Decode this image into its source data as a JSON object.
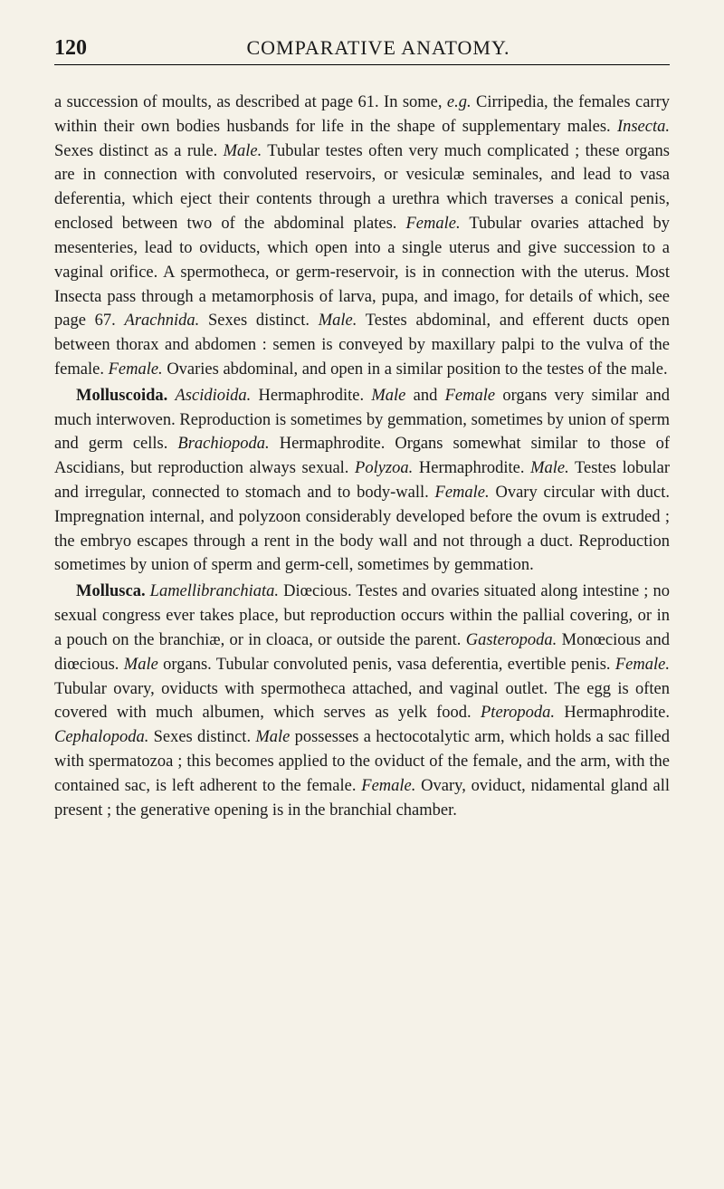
{
  "header": {
    "page_number": "120",
    "title": "COMPARATIVE ANATOMY."
  },
  "paragraphs": {
    "p1_part1": "a succession of moults, as described at page 61. In some, ",
    "p1_eg": "e.g.",
    "p1_part2": " Cirripedia, the females carry within their own bodies husbands for life in the shape of supplementary males. ",
    "p1_insecta": "Insecta.",
    "p1_part3": " Sexes distinct as a rule. ",
    "p1_male1": "Male.",
    "p1_part4": " Tubular testes often very much complicated ; these organs are in connection with convoluted reservoirs, or vesiculæ seminales, and lead to vasa deferentia, which eject their contents through a urethra which traverses a conical penis, enclosed between two of the abdominal plates. ",
    "p1_female1": "Female.",
    "p1_part5": " Tubular ovaries attached by mesenteries, lead to oviducts, which open into a single uterus and give succession to a vaginal orifice. A spermotheca, or germ-reservoir, is in connection with the uterus. Most Insecta pass through a metamorphosis of larva, pupa, and imago, for details of which, see page 67. ",
    "p1_arachnida": "Arachnida.",
    "p1_part6": " Sexes distinct. ",
    "p1_male2": "Male.",
    "p1_part7": " Testes abdominal, and efferent ducts open between thorax and abdomen : semen is conveyed by maxillary palpi to the vulva of the female. ",
    "p1_female2": "Female.",
    "p1_part8": " Ovaries abdominal, and open in a similar position to the testes of the male.",
    "p2_bold": "Molluscoida.",
    "p2_part1": " ",
    "p2_ascidioida": "Ascidioida.",
    "p2_part2": " Hermaphrodite. ",
    "p2_male1": "Male",
    "p2_part3": " and ",
    "p2_female1": "Female",
    "p2_part4": " organs very similar and much interwoven. Reproduction is sometimes by gemmation, sometimes by union of sperm and germ cells. ",
    "p2_brachiopoda": "Brachiopoda.",
    "p2_part5": " Hermaphrodite. Organs somewhat similar to those of Ascidians, but reproduction always sexual. ",
    "p2_polyzoa": "Polyzoa.",
    "p2_part6": " Hermaphrodite. ",
    "p2_male2": "Male.",
    "p2_part7": " Testes lobular and irregular, connected to stomach and to body-wall. ",
    "p2_female2": "Female.",
    "p2_part8": " Ovary circular with duct. Impregnation internal, and polyzoon considerably developed before the ovum is extruded ; the embryo escapes through a rent in the body wall and not through a duct. Reproduction sometimes by union of sperm and germ-cell, sometimes by gemmation.",
    "p3_bold": "Mollusca.",
    "p3_part1": " ",
    "p3_lamelli": "Lamellibranchiata.",
    "p3_part2": " Diœcious. Testes and ovaries situated along intestine ; no sexual congress ever takes place, but reproduction occurs within the pallial covering, or in a pouch on the branchiæ, or in cloaca, or outside the parent. ",
    "p3_gasteropoda": "Gasteropoda.",
    "p3_part3": " Monœcious and diœcious. ",
    "p3_male1": "Male",
    "p3_part4": " organs. Tubular convoluted penis, vasa deferentia, evertible penis. ",
    "p3_female1": "Female.",
    "p3_part5": " Tubular ovary, oviducts with spermotheca attached, and vaginal outlet. The egg is often covered with much albumen, which serves as yelk food. ",
    "p3_pteropoda": "Pteropoda.",
    "p3_part6": " Hermaphrodite. ",
    "p3_cephalopoda": "Cephalopoda.",
    "p3_part7": " Sexes distinct. ",
    "p3_male2": "Male",
    "p3_part8": " possesses a hectocotalytic arm, which holds a sac filled with spermatozoa ; this becomes applied to the oviduct of the female, and the arm, with the contained sac, is left adherent to the female. ",
    "p3_female2": "Female.",
    "p3_part9": " Ovary, oviduct, nidamental gland all present ; the generative opening is in the branchial chamber."
  },
  "styling": {
    "background_color": "#f5f2e8",
    "text_color": "#1a1a1a",
    "font_family": "Georgia, 'Times New Roman', serif",
    "body_fontsize": 18.5,
    "line_height": 1.45,
    "page_number_fontsize": 24,
    "title_fontsize": 22
  }
}
